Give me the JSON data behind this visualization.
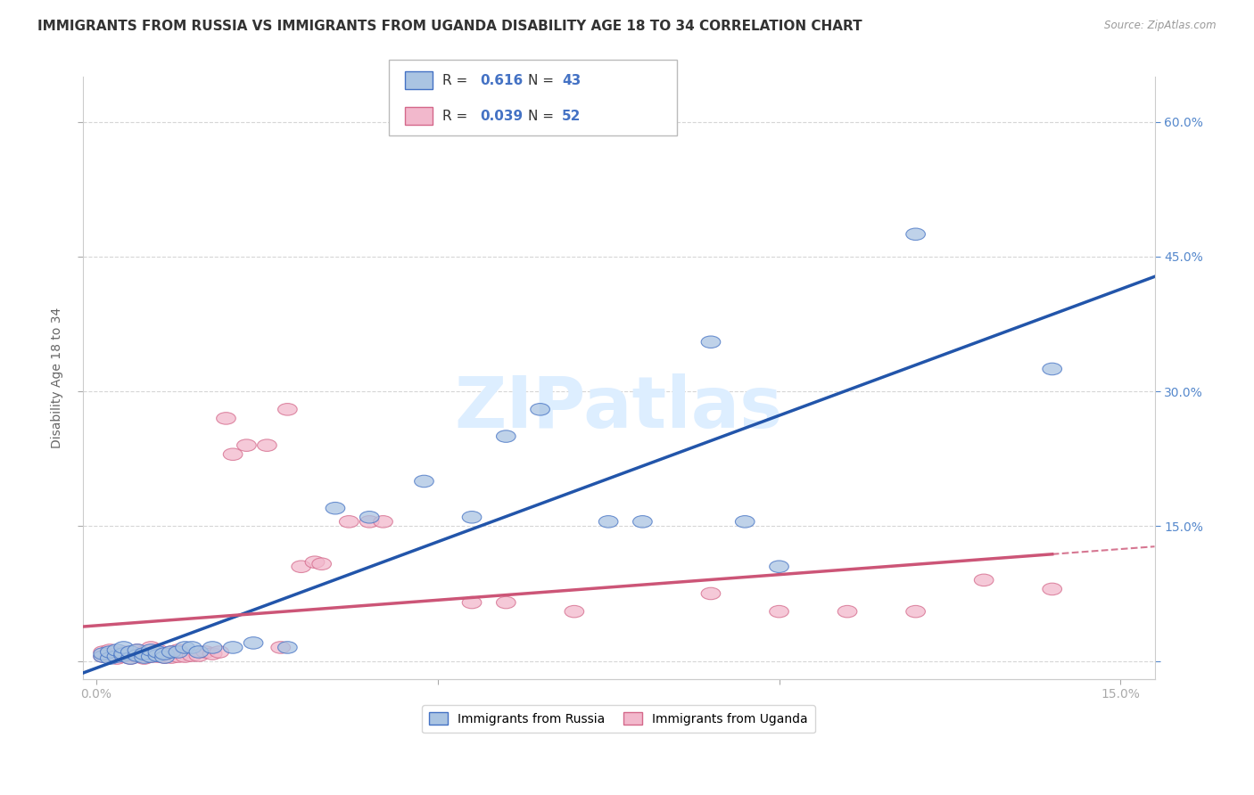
{
  "title": "IMMIGRANTS FROM RUSSIA VS IMMIGRANTS FROM UGANDA DISABILITY AGE 18 TO 34 CORRELATION CHART",
  "source_text": "Source: ZipAtlas.com",
  "ylabel": "Disability Age 18 to 34",
  "xlim": [
    -0.002,
    0.155
  ],
  "ylim": [
    -0.02,
    0.65
  ],
  "xticks": [
    0.0,
    0.05,
    0.1,
    0.15
  ],
  "xticklabels_show": [
    "0.0%",
    "15.0%"
  ],
  "yticks": [
    0.0,
    0.15,
    0.3,
    0.45,
    0.6
  ],
  "yticklabels_right": [
    "",
    "15.0%",
    "30.0%",
    "45.0%",
    "60.0%"
  ],
  "russia_R": 0.616,
  "russia_N": 43,
  "uganda_R": 0.039,
  "uganda_N": 52,
  "russia_color": "#aac4e2",
  "russia_edge_color": "#4472c4",
  "uganda_color": "#f2b8cc",
  "uganda_edge_color": "#d4688a",
  "russia_line_color": "#2255aa",
  "uganda_line_color": "#cc5577",
  "russia_scatter_x": [
    0.001,
    0.001,
    0.002,
    0.002,
    0.003,
    0.003,
    0.004,
    0.004,
    0.004,
    0.005,
    0.005,
    0.006,
    0.006,
    0.007,
    0.007,
    0.008,
    0.008,
    0.009,
    0.009,
    0.01,
    0.01,
    0.011,
    0.012,
    0.013,
    0.014,
    0.015,
    0.017,
    0.02,
    0.023,
    0.028,
    0.035,
    0.04,
    0.048,
    0.055,
    0.06,
    0.065,
    0.075,
    0.08,
    0.09,
    0.095,
    0.1,
    0.12,
    0.14
  ],
  "russia_scatter_y": [
    0.005,
    0.008,
    0.003,
    0.01,
    0.005,
    0.012,
    0.006,
    0.008,
    0.015,
    0.003,
    0.01,
    0.006,
    0.012,
    0.004,
    0.008,
    0.005,
    0.012,
    0.006,
    0.01,
    0.004,
    0.008,
    0.01,
    0.01,
    0.015,
    0.015,
    0.01,
    0.015,
    0.015,
    0.02,
    0.015,
    0.17,
    0.16,
    0.2,
    0.16,
    0.25,
    0.28,
    0.155,
    0.155,
    0.355,
    0.155,
    0.105,
    0.475,
    0.325
  ],
  "uganda_scatter_x": [
    0.001,
    0.001,
    0.002,
    0.002,
    0.003,
    0.003,
    0.004,
    0.004,
    0.005,
    0.005,
    0.006,
    0.006,
    0.007,
    0.007,
    0.008,
    0.008,
    0.008,
    0.009,
    0.009,
    0.01,
    0.01,
    0.011,
    0.011,
    0.012,
    0.012,
    0.013,
    0.014,
    0.015,
    0.016,
    0.017,
    0.018,
    0.019,
    0.02,
    0.022,
    0.025,
    0.027,
    0.028,
    0.03,
    0.032,
    0.033,
    0.037,
    0.04,
    0.042,
    0.055,
    0.06,
    0.07,
    0.09,
    0.1,
    0.11,
    0.12,
    0.13,
    0.14
  ],
  "uganda_scatter_y": [
    0.005,
    0.01,
    0.005,
    0.012,
    0.003,
    0.008,
    0.005,
    0.01,
    0.003,
    0.008,
    0.005,
    0.012,
    0.003,
    0.01,
    0.005,
    0.008,
    0.015,
    0.005,
    0.012,
    0.004,
    0.008,
    0.004,
    0.01,
    0.005,
    0.012,
    0.005,
    0.006,
    0.006,
    0.01,
    0.008,
    0.01,
    0.27,
    0.23,
    0.24,
    0.24,
    0.015,
    0.28,
    0.105,
    0.11,
    0.108,
    0.155,
    0.155,
    0.155,
    0.065,
    0.065,
    0.055,
    0.075,
    0.055,
    0.055,
    0.055,
    0.09,
    0.08
  ],
  "background_color": "#ffffff",
  "grid_color": "#cccccc",
  "watermark_color": "#ddeeff",
  "title_fontsize": 11,
  "axis_label_fontsize": 10,
  "tick_fontsize": 10
}
